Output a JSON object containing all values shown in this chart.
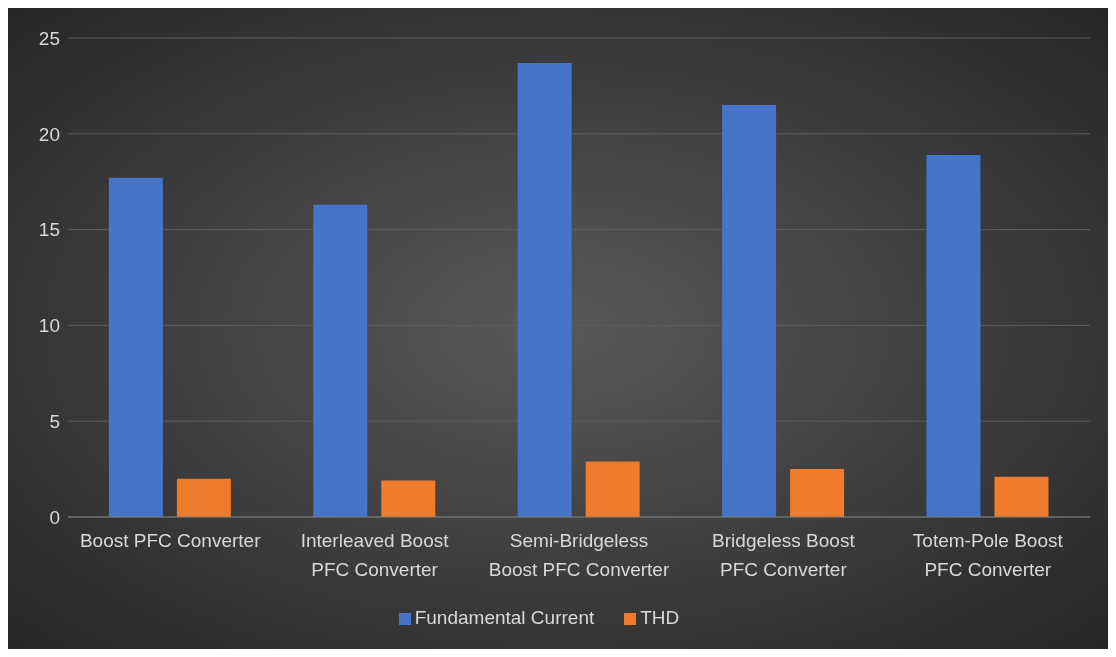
{
  "chart_data": {
    "type": "bar",
    "categories": [
      "Boost PFC Converter",
      "Interleaved Boost PFC Converter",
      "Semi-Bridgeless Boost PFC Converter",
      "Bridgeless Boost PFC Converter",
      "Totem-Pole Boost PFC Converter"
    ],
    "series": [
      {
        "name": "Fundamental Current",
        "color": "#4674c8",
        "values": [
          17.7,
          16.3,
          23.7,
          21.5,
          18.9
        ]
      },
      {
        "name": "THD",
        "color": "#ef7b2c",
        "values": [
          2.0,
          1.9,
          2.9,
          2.5,
          2.1
        ]
      }
    ],
    "ylim": [
      0,
      25
    ],
    "yticks": [
      0,
      5,
      10,
      15,
      20,
      25
    ],
    "grid": "y",
    "legend": "bottom"
  }
}
